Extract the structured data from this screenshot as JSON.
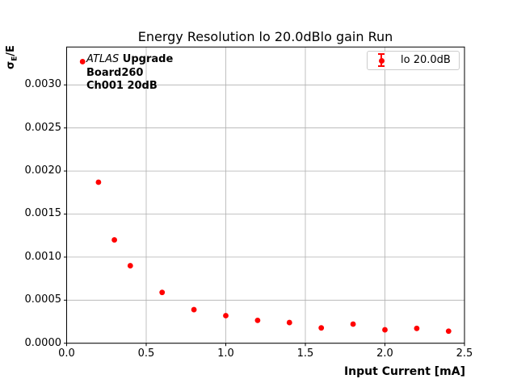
{
  "figure": {
    "title": "Energy Resolution lo 20.0dBlo gain Run",
    "background": "#ffffff"
  },
  "axes": {
    "xlabel": "Input Current [mA]",
    "ylabel_parts": {
      "base": "σ",
      "sub": "E",
      "rest": "/E"
    }
  },
  "annotation": {
    "experiment": "ATLAS",
    "experiment_suffix": " Upgrade",
    "board": "Board260",
    "channel": "Ch001 20dB"
  },
  "legend": {
    "position": "upper right",
    "entries": [
      {
        "label": "lo 20.0dB",
        "color": "#ff0000",
        "marker": "errorbar-circle"
      }
    ]
  },
  "chart_data": {
    "type": "scatter",
    "title": "Energy Resolution lo 20.0dBlo gain Run",
    "xlabel": "Input Current [mA]",
    "ylabel": "σ_E/E",
    "xlim": [
      0.0,
      2.5
    ],
    "ylim": [
      0.0,
      0.00344
    ],
    "grid": true,
    "grid_color": "#b0b0b0",
    "spine_color": "#000000",
    "legend_position": "upper right",
    "x_ticks": [
      0.0,
      0.5,
      1.0,
      1.5,
      2.0,
      2.5
    ],
    "x_tick_labels": [
      "0.0",
      "0.5",
      "1.0",
      "1.5",
      "2.0",
      "2.5"
    ],
    "y_ticks": [
      0.0,
      0.0005,
      0.001,
      0.0015,
      0.002,
      0.0025,
      0.003
    ],
    "y_tick_labels": [
      "0.0000",
      "0.0005",
      "0.0010",
      "0.0015",
      "0.0020",
      "0.0025",
      "0.0030"
    ],
    "series": [
      {
        "name": "lo 20.0dB",
        "color": "#ff0000",
        "marker": "circle",
        "marker_radius_px": 3.4,
        "x": [
          0.1,
          0.2,
          0.3,
          0.4,
          0.6,
          0.8,
          1.0,
          1.2,
          1.4,
          1.6,
          1.8,
          2.0,
          2.2,
          2.4
        ],
        "y": [
          0.00327,
          0.00187,
          0.0012,
          0.0009,
          0.00059,
          0.00039,
          0.00032,
          0.000265,
          0.00024,
          0.000178,
          0.000222,
          0.000156,
          0.000172,
          0.00014
        ]
      }
    ]
  }
}
